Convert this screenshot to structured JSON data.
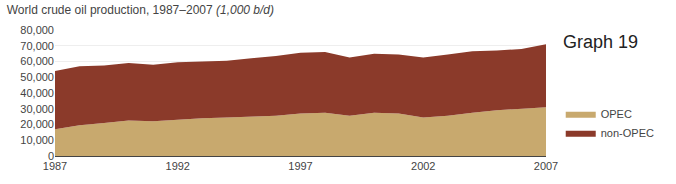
{
  "chart_data": {
    "type": "area",
    "title": "World crude oil production, 1987–2007",
    "subtitle": "(1,000 b/d)",
    "annotations": [
      "Graph 19"
    ],
    "x": [
      1987,
      1988,
      1989,
      1990,
      1991,
      1992,
      1993,
      1994,
      1995,
      1996,
      1997,
      1998,
      1999,
      2000,
      2001,
      2002,
      2003,
      2004,
      2005,
      2006,
      2007
    ],
    "series": [
      {
        "name": "OPEC",
        "color": "#c8a96e",
        "values": [
          17000,
          19500,
          21000,
          22500,
          22000,
          23000,
          24000,
          24500,
          25000,
          25500,
          27000,
          27500,
          25500,
          27500,
          27000,
          24500,
          25500,
          27500,
          29000,
          30000,
          31000
        ]
      },
      {
        "name": "non-OPEC",
        "color": "#8b3a2a",
        "values": [
          37000,
          37500,
          36500,
          36500,
          36000,
          36500,
          36000,
          36000,
          37000,
          38000,
          38500,
          38500,
          37000,
          37500,
          37500,
          38000,
          39000,
          39000,
          38000,
          38000,
          40000
        ]
      }
    ],
    "stacked": true,
    "xlim": [
      1987,
      2007
    ],
    "xticks": [
      1987,
      1992,
      1997,
      2002,
      2007
    ],
    "ylim": [
      0,
      80000
    ],
    "yticks": [
      0,
      {
        "value": 10000,
        "label": "10,000"
      },
      {
        "value": 20000,
        "label": "20,000"
      },
      {
        "value": 30000,
        "label": "30,000"
      },
      {
        "value": 40000,
        "label": "40,000"
      },
      {
        "value": 50000,
        "label": "50,000"
      },
      {
        "value": 60000,
        "label": "60,000"
      },
      {
        "value": 70000,
        "label": "70,000"
      },
      {
        "value": 80000,
        "label": "80,000"
      }
    ],
    "grid": true,
    "legend": "right"
  }
}
